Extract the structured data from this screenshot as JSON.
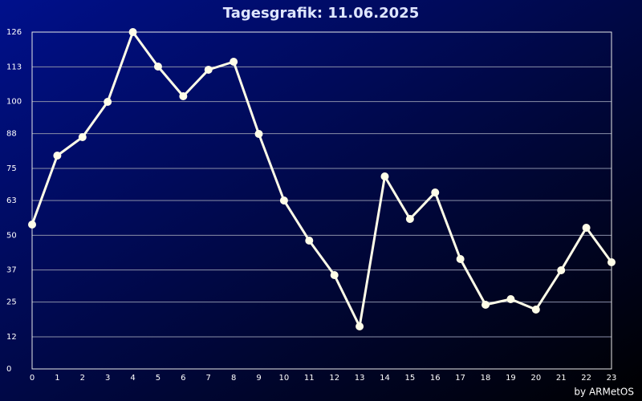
{
  "chart_data": {
    "type": "line",
    "title": "Tagesgrafik: 11.06.2025",
    "credit": "by ARMetOS",
    "categories": [
      "0",
      "1",
      "2",
      "3",
      "4",
      "5",
      "6",
      "7",
      "8",
      "9",
      "10",
      "11",
      "12",
      "13",
      "14",
      "15",
      "16",
      "17",
      "18",
      "19",
      "20",
      "21",
      "22",
      "23"
    ],
    "series": [
      {
        "color": "#fffde8",
        "values": [
          54,
          79.8,
          86.7,
          99.9,
          126,
          113.1,
          102,
          111.9,
          114.9,
          87.9,
          63,
          48,
          35.1,
          15.9,
          72,
          56.1,
          66,
          41.1,
          24,
          26.1,
          22.2,
          36.9,
          52.8,
          39.9
        ]
      }
    ],
    "ylim": [
      0,
      126
    ],
    "yticks": [
      0,
      12,
      25,
      37,
      50,
      63,
      75,
      88,
      100,
      113,
      126
    ],
    "grid": true
  }
}
